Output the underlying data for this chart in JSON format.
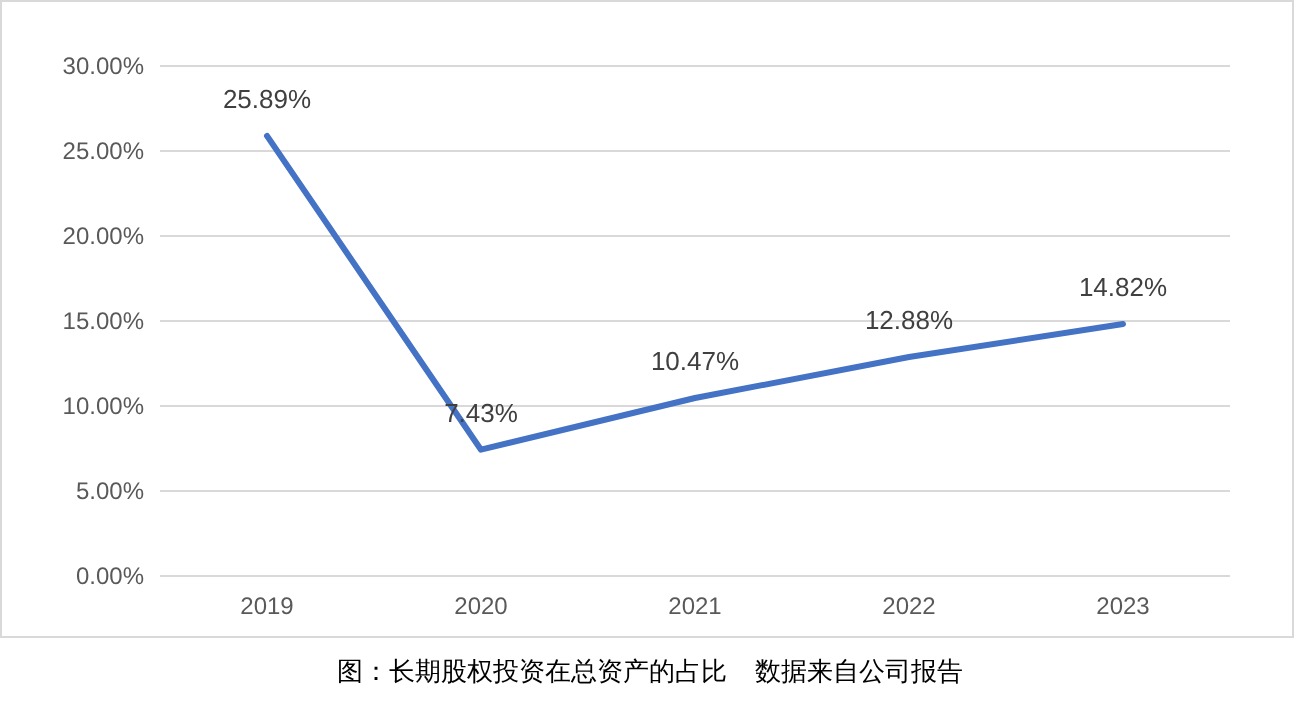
{
  "chart_data": {
    "type": "line",
    "categories": [
      "2019",
      "2020",
      "2021",
      "2022",
      "2023"
    ],
    "series": [
      {
        "color": "#4472c4",
        "values": [
          25.89,
          7.43,
          10.47,
          12.88,
          14.82
        ],
        "value_labels": [
          "25.89%",
          "7.43%",
          "10.47%",
          "12.88%",
          "14.82%"
        ]
      }
    ],
    "ylim": [
      0,
      30
    ],
    "yticks": [
      {
        "value": 0,
        "label": "0.00%"
      },
      {
        "value": 5,
        "label": "5.00%"
      },
      {
        "value": 10,
        "label": "10.00%"
      },
      {
        "value": 15,
        "label": "15.00%"
      },
      {
        "value": 20,
        "label": "20.00%"
      },
      {
        "value": 25,
        "label": "25.00%"
      },
      {
        "value": 30,
        "label": "30.00%"
      }
    ],
    "grid": "y",
    "marker": "none",
    "line_style": "solid",
    "annotations": [
      "图：长期股权投资在总资产的占比    数据来自公司报告"
    ]
  }
}
